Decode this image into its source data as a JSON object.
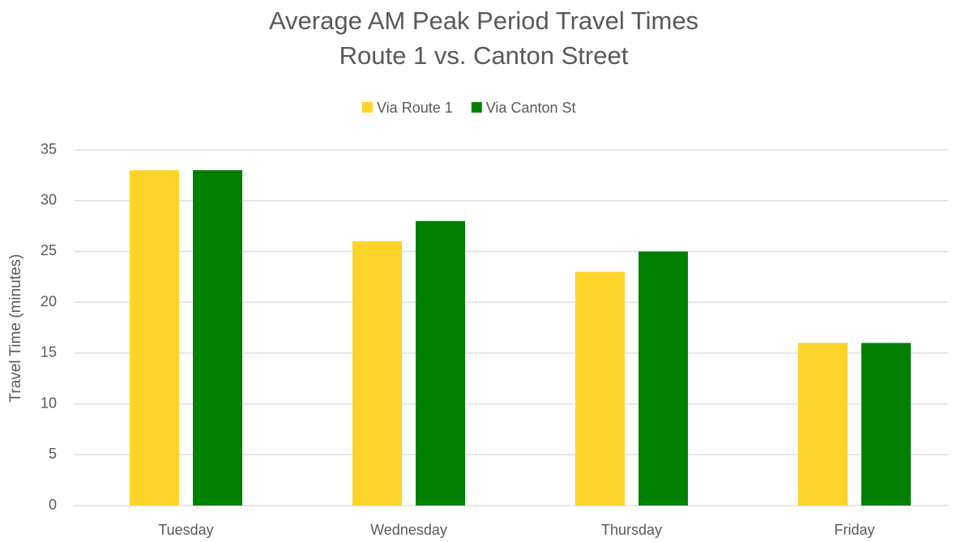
{
  "chart_data": {
    "type": "bar",
    "title": "Average AM Peak Period Travel Times",
    "subtitle": "Route 1 vs. Canton Street",
    "y_label": "Travel Time (minutes)",
    "categories": [
      "Tuesday",
      "Wednesday",
      "Thursday",
      "Friday"
    ],
    "series": [
      {
        "name": "Via Route 1",
        "color": "#fdd42a",
        "values": [
          33,
          26,
          23,
          16
        ]
      },
      {
        "name": "Via Canton St",
        "color": "#008000",
        "values": [
          33,
          28,
          25,
          16
        ]
      }
    ],
    "ylim": [
      0,
      35
    ],
    "yticks": [
      0,
      5,
      10,
      15,
      20,
      25,
      30,
      35
    ],
    "grid": true,
    "legend": "top"
  }
}
